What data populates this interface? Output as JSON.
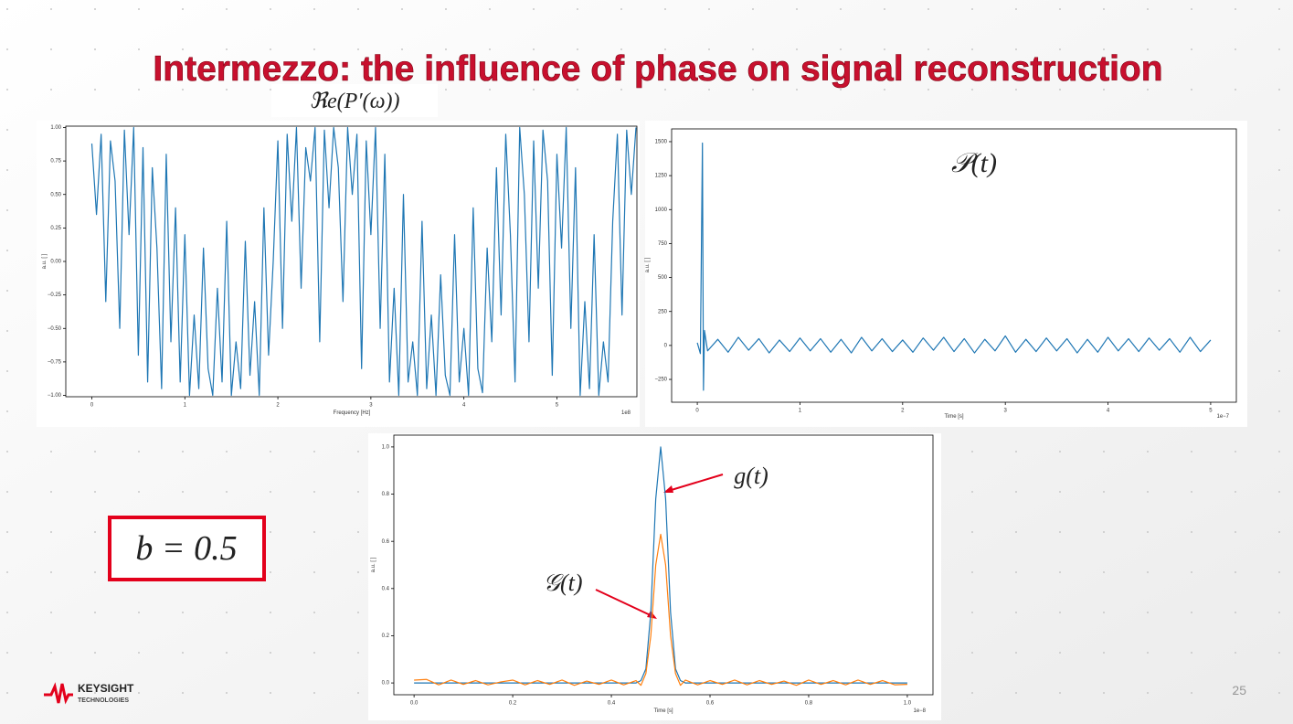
{
  "title": "Intermezzo: the influence of phase on signal reconstruction",
  "formula": "b = 0.5",
  "logo": {
    "name": "KEYSIGHT",
    "sub": "TECHNOLOGIES"
  },
  "page_number": "25",
  "chart_data": [
    {
      "type": "line",
      "title": "ℜe(P′(ω))",
      "x_label": "Frequency [Hz]",
      "y_label": "a.u. [ ]",
      "x_offset_label": "1e8",
      "color": "#1f77b4",
      "x": [
        0,
        0.05,
        0.1,
        0.15,
        0.2,
        0.25,
        0.3,
        0.35,
        0.4,
        0.45,
        0.5,
        0.55,
        0.6,
        0.65,
        0.7,
        0.75,
        0.8,
        0.85,
        0.9,
        0.95,
        1.0,
        1.05,
        1.1,
        1.15,
        1.2,
        1.25,
        1.3,
        1.35,
        1.4,
        1.45,
        1.5,
        1.55,
        1.6,
        1.65,
        1.7,
        1.75,
        1.8,
        1.85,
        1.9,
        1.95,
        2.0,
        2.05,
        2.1,
        2.15,
        2.2,
        2.25,
        2.3,
        2.35,
        2.4,
        2.45,
        2.5,
        2.55,
        2.6,
        2.65,
        2.7,
        2.75,
        2.8,
        2.85,
        2.9,
        2.95,
        3.0,
        3.05,
        3.1,
        3.15,
        3.2,
        3.25,
        3.3,
        3.35,
        3.4,
        3.45,
        3.5,
        3.55,
        3.6,
        3.65,
        3.7,
        3.75,
        3.8,
        3.85,
        3.9,
        3.95,
        4.0,
        4.05,
        4.1,
        4.15,
        4.2,
        4.25,
        4.3,
        4.35,
        4.4,
        4.45,
        4.5,
        4.55,
        4.6,
        4.65,
        4.7,
        4.75,
        4.8,
        4.85,
        4.9,
        4.95,
        5.0,
        5.05,
        5.1,
        5.15,
        5.2,
        5.25,
        5.3,
        5.35,
        5.4,
        5.45,
        5.5,
        5.55,
        5.6,
        5.65,
        5.7,
        5.75,
        5.8,
        5.85
      ],
      "values": [
        0.88,
        0.35,
        0.95,
        -0.3,
        0.9,
        0.6,
        -0.5,
        0.98,
        0.2,
        1.0,
        -0.7,
        0.85,
        -0.9,
        0.7,
        0.1,
        -0.95,
        0.8,
        -0.6,
        0.4,
        -0.9,
        0.2,
        -1.0,
        -0.4,
        -0.95,
        0.1,
        -0.8,
        -1.0,
        -0.2,
        -0.9,
        0.3,
        -1.0,
        -0.6,
        -0.95,
        0.15,
        -0.85,
        -0.3,
        -1.0,
        0.4,
        -0.7,
        0.0,
        0.9,
        -0.5,
        0.95,
        0.3,
        1.0,
        -0.2,
        0.85,
        0.6,
        1.0,
        -0.6,
        0.98,
        0.4,
        1.0,
        0.7,
        -0.3,
        1.0,
        0.5,
        0.95,
        -0.8,
        0.9,
        0.2,
        1.0,
        -0.5,
        0.8,
        -0.9,
        -0.2,
        -1.0,
        0.5,
        -0.9,
        -0.6,
        -1.0,
        0.3,
        -0.95,
        -0.4,
        -1.0,
        -0.1,
        -0.85,
        -1.0,
        0.2,
        -0.9,
        -0.5,
        -1.0,
        0.4,
        -0.8,
        -0.98,
        0.1,
        -0.6,
        0.7,
        -0.4,
        0.95,
        0.2,
        -0.9,
        1.0,
        0.5,
        -0.6,
        0.9,
        -0.2,
        0.98,
        0.6,
        -0.85,
        0.8,
        0.1,
        1.0,
        -0.5,
        0.7,
        -1.0,
        -0.3,
        -0.95,
        0.2,
        -1.0,
        -0.6,
        -0.9,
        0.3,
        0.95,
        -0.4,
        0.98,
        0.5,
        1.0
      ],
      "xlim": [
        -0.28,
        5.86
      ],
      "ylim": [
        -1.01,
        1.01
      ],
      "xticks": [
        0,
        1,
        2,
        3,
        4,
        5
      ],
      "yticks": [
        {
          "value": -1,
          "label": "−1.00"
        },
        {
          "value": -0.75,
          "label": "−0.75"
        },
        {
          "value": -0.5,
          "label": "−0.50"
        },
        {
          "value": -0.25,
          "label": "−0.25"
        },
        {
          "value": 0,
          "label": "0.00"
        },
        {
          "value": 0.25,
          "label": "0.25"
        },
        {
          "value": 0.5,
          "label": "0.50"
        },
        {
          "value": 0.75,
          "label": "0.75"
        },
        {
          "value": 1,
          "label": "1.00"
        }
      ]
    },
    {
      "type": "line",
      "annotation": "𝒫(t)",
      "x_label": "Time [s]",
      "y_label": "a.u. [ ]",
      "x_offset_label": "1e−7",
      "color": "#1f77b4",
      "x": [
        0,
        0.03,
        0.05,
        0.06,
        0.07,
        0.1,
        0.2,
        0.3,
        0.4,
        0.5,
        0.6,
        0.7,
        0.8,
        0.9,
        1.0,
        1.1,
        1.2,
        1.3,
        1.4,
        1.5,
        1.6,
        1.7,
        1.8,
        1.9,
        2.0,
        2.1,
        2.2,
        2.3,
        2.4,
        2.5,
        2.6,
        2.7,
        2.8,
        2.9,
        3.0,
        3.1,
        3.2,
        3.3,
        3.4,
        3.5,
        3.6,
        3.7,
        3.8,
        3.9,
        4.0,
        4.1,
        4.2,
        4.3,
        4.4,
        4.5,
        4.6,
        4.7,
        4.8,
        4.9,
        5.0
      ],
      "values": [
        20,
        -60,
        1490,
        -330,
        110,
        -40,
        45,
        -50,
        60,
        -35,
        50,
        -55,
        40,
        -45,
        55,
        -40,
        50,
        -50,
        45,
        -55,
        60,
        -40,
        50,
        -45,
        40,
        -50,
        55,
        -35,
        60,
        -45,
        50,
        -55,
        45,
        -40,
        70,
        -50,
        45,
        -45,
        55,
        -40,
        50,
        -55,
        45,
        -50,
        60,
        -40,
        50,
        -45,
        55,
        -35,
        50,
        -50,
        60,
        -45,
        40
      ],
      "xlim": [
        -0.25,
        5.25
      ],
      "ylim": [
        -418,
        1594
      ],
      "xticks": [
        0,
        1,
        2,
        3,
        4,
        5
      ],
      "yticks": [
        {
          "value": -250,
          "label": "−250"
        },
        0,
        250,
        500,
        750,
        1000,
        1250,
        1500
      ]
    },
    {
      "type": "line",
      "x_label": "Time [s]",
      "y_label": "a.u. [ ]",
      "x_offset_label": "1e−8",
      "x": [
        0,
        0.025,
        0.05,
        0.075,
        0.1,
        0.125,
        0.15,
        0.175,
        0.2,
        0.225,
        0.25,
        0.275,
        0.3,
        0.325,
        0.35,
        0.375,
        0.4,
        0.425,
        0.45,
        0.46,
        0.47,
        0.48,
        0.49,
        0.5,
        0.51,
        0.52,
        0.53,
        0.54,
        0.55,
        0.575,
        0.6,
        0.625,
        0.65,
        0.675,
        0.7,
        0.725,
        0.75,
        0.775,
        0.8,
        0.825,
        0.85,
        0.875,
        0.9,
        0.925,
        0.95,
        0.975,
        1.0
      ],
      "series": [
        {
          "name": "g(t)",
          "color": "#1f77b4",
          "values": [
            0,
            0,
            0,
            0,
            0,
            0,
            0,
            0,
            0,
            0,
            0,
            0,
            0,
            0,
            0,
            0,
            0,
            0,
            0,
            0.01,
            0.06,
            0.3,
            0.78,
            1.0,
            0.78,
            0.3,
            0.06,
            0.01,
            0,
            0,
            0,
            0,
            0,
            0,
            0,
            0,
            0,
            0,
            0,
            0,
            0,
            0,
            0,
            0,
            0,
            0,
            0
          ]
        },
        {
          "name": "𝒢(t)",
          "color": "#ff7f0e",
          "values": [
            0.012,
            0.015,
            -0.008,
            0.012,
            -0.006,
            0.01,
            -0.008,
            0.004,
            0.012,
            -0.008,
            0.01,
            -0.006,
            0.012,
            -0.01,
            0.008,
            -0.006,
            0.012,
            -0.008,
            0.01,
            -0.01,
            0.04,
            0.2,
            0.5,
            0.63,
            0.5,
            0.2,
            0.04,
            -0.01,
            0.012,
            -0.008,
            0.01,
            -0.006,
            0.012,
            -0.008,
            0.01,
            -0.006,
            0.008,
            -0.01,
            0.012,
            -0.006,
            0.01,
            -0.008,
            0.012,
            -0.006,
            0.01,
            -0.008,
            -0.006
          ]
        }
      ],
      "xlim": [
        -0.041,
        1.052
      ],
      "ylim": [
        -0.05,
        1.05
      ],
      "xticks": [
        {
          "value": 0,
          "label": "0.0"
        },
        {
          "value": 0.2,
          "label": "0.2"
        },
        {
          "value": 0.4,
          "label": "0.4"
        },
        {
          "value": 0.6,
          "label": "0.6"
        },
        {
          "value": 0.8,
          "label": "0.8"
        },
        {
          "value": 1,
          "label": "1.0"
        }
      ],
      "yticks": [
        {
          "value": 0,
          "label": "0.0"
        },
        {
          "value": 0.2,
          "label": "0.2"
        },
        {
          "value": 0.4,
          "label": "0.4"
        },
        {
          "value": 0.6,
          "label": "0.6"
        },
        {
          "value": 0.8,
          "label": "0.8"
        },
        {
          "value": 1,
          "label": "1.0"
        }
      ]
    }
  ]
}
